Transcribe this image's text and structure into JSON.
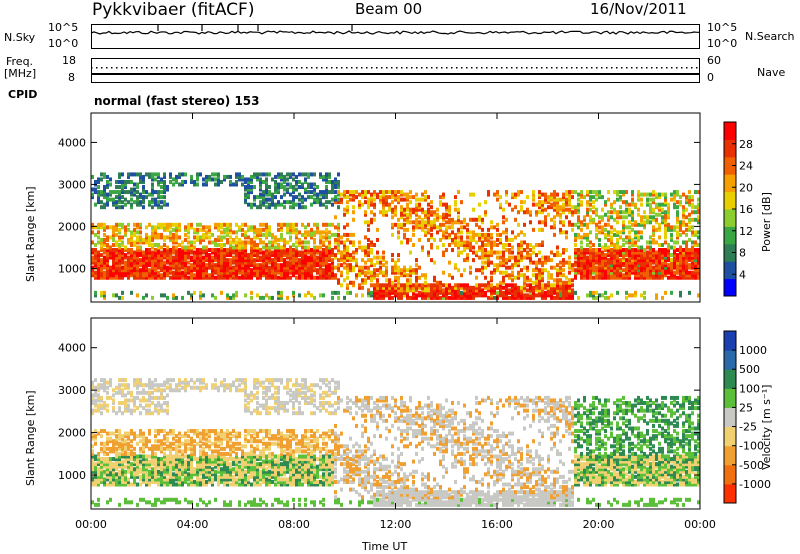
{
  "header": {
    "station": "Pykkvibaer (fitACF)",
    "beam": "Beam 00",
    "date": "16/Nov/2011"
  },
  "top_panels": {
    "nsky_label": "N.Sky",
    "nsky_ticks": [
      "10^5",
      "10^0"
    ],
    "nsearch_label": "N.Search",
    "nsearch_ticks": [
      "10^5",
      "10^0"
    ],
    "freq_label_1": "Freq.",
    "freq_label_2": "[MHz]",
    "freq_ticks": [
      "18",
      "8"
    ],
    "nave_label": "Nave",
    "nave_ticks": [
      "60",
      "0"
    ],
    "cpid_label": "CPID",
    "cpid_text": "normal (fast stereo) 153"
  },
  "power_panel": {
    "ylabel": "Slant Range [km]",
    "yticks": [
      "4000",
      "3000",
      "2000",
      "1000"
    ],
    "colorbar_label": "Power [dB]",
    "colorbar_ticks": [
      "28",
      "24",
      "20",
      "16",
      "12",
      "8",
      "4"
    ],
    "colors": [
      "#0000ff",
      "#1f4fa0",
      "#2e7d55",
      "#3aa644",
      "#8ccd2f",
      "#e8d000",
      "#f5a000",
      "#f06000",
      "#e83000",
      "#ff0000"
    ]
  },
  "velocity_panel": {
    "ylabel": "Slant Range [km]",
    "yticks": [
      "4000",
      "3000",
      "2000",
      "1000"
    ],
    "colorbar_label": "Velocity [m s⁻¹]",
    "colorbar_ticks": [
      "1000",
      "500",
      "100",
      "25",
      "-25",
      "-100",
      "-500",
      "-1000"
    ],
    "colors": [
      "#1a3fb0",
      "#2a6aa8",
      "#2e8a50",
      "#5cbf3a",
      "#c8c8c4",
      "#f0d070",
      "#f0a030",
      "#f07010",
      "#ff3000"
    ]
  },
  "xaxis": {
    "ticks": [
      "00:00",
      "04:00",
      "08:00",
      "12:00",
      "16:00",
      "20:00",
      "00:00"
    ],
    "label": "Time UT"
  },
  "chart_data": {
    "type": "heatmap",
    "title": "Pykkvibaer (fitACF)",
    "subtitle": "Beam 00",
    "date": "16/Nov/2011",
    "x_range": [
      "00:00",
      "00:00"
    ],
    "y_range_km": [
      200,
      4700
    ],
    "panels": [
      {
        "name": "Power",
        "unit": "dB",
        "colorbar_range": [
          0,
          30
        ]
      },
      {
        "name": "Velocity",
        "unit": "m s-1",
        "colorbar_range": [
          -1000,
          1000
        ]
      }
    ]
  }
}
